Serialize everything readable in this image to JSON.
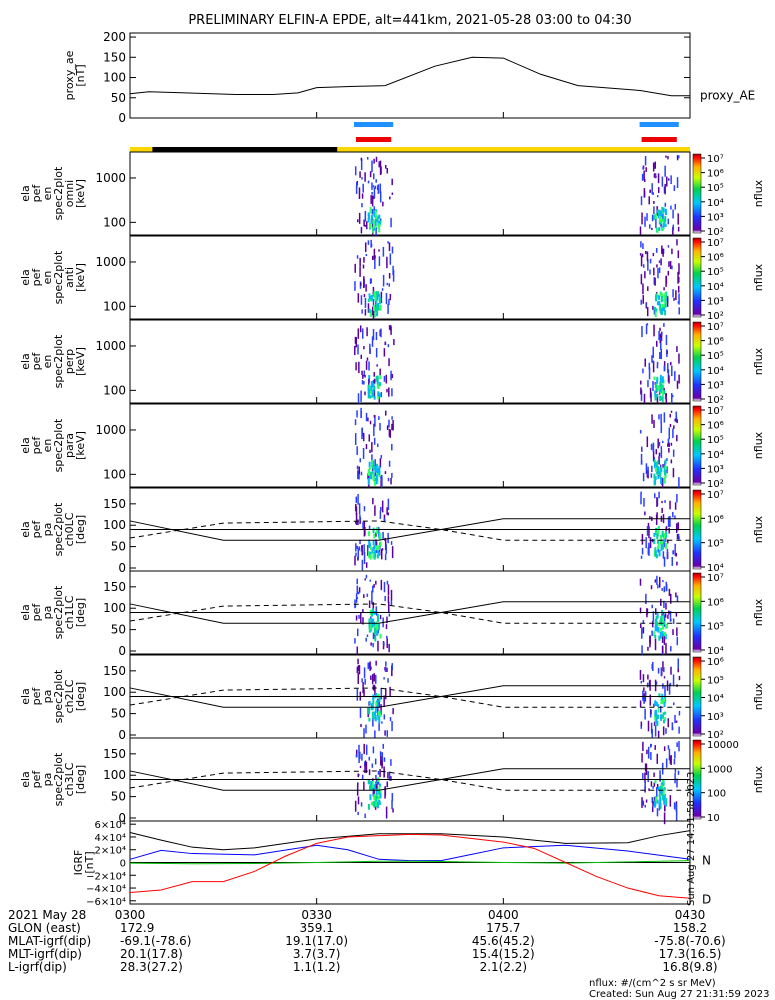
{
  "title": "PRELIMINARY ELFIN-A EPDE, alt=441km, 2021-05-28 03:00 to 04:30",
  "chart_data": {
    "type": "line",
    "time_range": [
      "03:00",
      "04:30"
    ],
    "x_ticks": [
      "0300",
      "0330",
      "0400",
      "0430"
    ],
    "panels": [
      {
        "id": "proxy_ae",
        "ylabel": [
          "proxy_ae",
          "[nT]"
        ],
        "yticks": [
          "0",
          "50",
          "100",
          "150",
          "200"
        ],
        "ylim": [
          0,
          210
        ],
        "legend": "proxy_AE",
        "series": [
          {
            "name": "proxy_AE",
            "x": [
              0,
              3,
              7,
              17,
              23,
              27,
              30,
              36,
              41,
              49,
              55,
              60,
              66,
              72,
              82,
              87,
              90
            ],
            "y": [
              60,
              65,
              63,
              58,
              58,
              62,
              75,
              78,
              80,
              128,
              150,
              148,
              108,
              80,
              68,
              55,
              55
            ]
          }
        ]
      },
      {
        "id": "omni",
        "ylabel": [
          "ela",
          "pef",
          "en",
          "spec2plot",
          "omni",
          "[keV]"
        ],
        "yticks": [
          "100",
          "1000"
        ],
        "cbar_ticks": [
          "10²",
          "10³",
          "10⁴",
          "10⁵",
          "10⁶",
          "10⁷"
        ],
        "cbar_label": "nflux"
      },
      {
        "id": "anti",
        "ylabel": [
          "ela",
          "pef",
          "en",
          "spec2plot",
          "anti",
          "[keV]"
        ],
        "yticks": [
          "100",
          "1000"
        ],
        "cbar_ticks": [
          "10²",
          "10³",
          "10⁴",
          "10⁵",
          "10⁶",
          "10⁷"
        ],
        "cbar_label": "nflux"
      },
      {
        "id": "perp",
        "ylabel": [
          "ela",
          "pef",
          "en",
          "spec2plot",
          "perp",
          "[keV]"
        ],
        "yticks": [
          "100",
          "1000"
        ],
        "cbar_ticks": [
          "10²",
          "10³",
          "10⁴",
          "10⁵",
          "10⁶",
          "10⁷"
        ],
        "cbar_label": "nflux"
      },
      {
        "id": "para",
        "ylabel": [
          "ela",
          "pef",
          "en",
          "spec2plot",
          "para",
          "[keV]"
        ],
        "yticks": [
          "100",
          "1000"
        ],
        "cbar_ticks": [
          "10²",
          "10³",
          "10⁴",
          "10⁵",
          "10⁶",
          "10⁷"
        ],
        "cbar_label": "nflux"
      },
      {
        "id": "ch0LC",
        "ylabel": [
          "ela",
          "pef",
          "pa",
          "spec2plot",
          "ch0LC",
          "[deg]"
        ],
        "yticks": [
          "0",
          "50",
          "100",
          "150"
        ],
        "cbar_ticks": [
          "10⁴",
          "10⁵",
          "10⁶",
          "10⁷"
        ],
        "cbar_label": "nflux"
      },
      {
        "id": "ch1LC",
        "ylabel": [
          "ela",
          "pef",
          "pa",
          "spec2plot",
          "ch1LC",
          "[deg]"
        ],
        "yticks": [
          "0",
          "50",
          "100",
          "150"
        ],
        "cbar_ticks": [
          "10⁴",
          "10⁵",
          "10⁶",
          "10⁷"
        ],
        "cbar_label": "nflux"
      },
      {
        "id": "ch2LC",
        "ylabel": [
          "ela",
          "pef",
          "pa",
          "spec2plot",
          "ch2LC",
          "[deg]"
        ],
        "yticks": [
          "0",
          "50",
          "100",
          "150"
        ],
        "cbar_ticks": [
          "10²",
          "10³",
          "10⁴",
          "10⁵",
          "10⁶"
        ],
        "cbar_label": "nflux"
      },
      {
        "id": "ch3LC",
        "ylabel": [
          "ela",
          "pef",
          "pa",
          "spec2plot",
          "ch3LC",
          "[deg]"
        ],
        "yticks": [
          "0",
          "50",
          "100",
          "150"
        ],
        "cbar_ticks": [
          "10",
          "100",
          "1000",
          "10000"
        ],
        "cbar_label": "nflux"
      },
      {
        "id": "igrf",
        "ylabel": [
          "IGRF",
          "[nT]"
        ],
        "yticks": [
          "−6×10⁴",
          "−4×10⁴",
          "−2×10⁴",
          "0",
          "2×10⁴",
          "4×10⁴",
          "6×10⁴"
        ],
        "ylim": [
          -65000,
          65000
        ],
        "series": [
          {
            "color": "#000000",
            "x": [
              0,
              5,
              10,
              15,
              20,
              30,
              40,
              50,
              60,
              70,
              80,
              85,
              90
            ],
            "y": [
              47000,
              35000,
              24000,
              20000,
              23000,
              37000,
              45000,
              45000,
              40000,
              30000,
              31000,
              42000,
              50000
            ]
          },
          {
            "name": "N",
            "color": "#0000ff",
            "x": [
              0,
              5,
              10,
              20,
              30,
              35,
              40,
              45,
              50,
              55,
              60,
              70,
              80,
              90
            ],
            "y": [
              5000,
              19000,
              14000,
              12000,
              27000,
              20000,
              5000,
              3000,
              3000,
              13000,
              23000,
              27000,
              18000,
              5000
            ]
          },
          {
            "color": "#00c000",
            "x": [
              0,
              10,
              20,
              30,
              40,
              45,
              50,
              60,
              70,
              80,
              90
            ],
            "y": [
              -1000,
              -2000,
              -1500,
              0,
              2000,
              2000,
              1500,
              0,
              -1000,
              1000,
              3000
            ]
          },
          {
            "name": "D",
            "color": "#ff0000",
            "x": [
              0,
              5,
              10,
              15,
              20,
              25,
              30,
              35,
              40,
              45,
              50,
              60,
              65,
              70,
              75,
              80,
              85,
              90
            ],
            "y": [
              -47000,
              -43000,
              -30000,
              -30000,
              -14000,
              10000,
              30000,
              40000,
              42000,
              44000,
              43000,
              32000,
              22000,
              0,
              -22000,
              -40000,
              -52000,
              -56000
            ]
          }
        ]
      }
    ],
    "bursts": [
      [
        0.4,
        0.47
      ],
      [
        0.91,
        0.98
      ]
    ],
    "orbit_bar_black": [
      0.04,
      0.37
    ]
  },
  "footer": {
    "date_label": "2021 May 28",
    "rows": [
      {
        "label": "GLON (east)",
        "values": [
          "172.9",
          "359.1",
          "175.7",
          "158.2"
        ]
      },
      {
        "label": "MLAT-igrf(dip)",
        "values": [
          "-69.1(-78.6)",
          "19.1(17.0)",
          "45.6(45.2)",
          "-75.8(-70.6)"
        ]
      },
      {
        "label": "MLT-igrf(dip)",
        "values": [
          "20.1(17.8)",
          "3.7(3.7)",
          "15.4(15.2)",
          "17.3(16.5)"
        ]
      },
      {
        "label": "L-igrf(dip)",
        "values": [
          "28.3(27.2)",
          "1.1(1.2)",
          "2.1(2.2)",
          "16.8(9.8)"
        ]
      }
    ],
    "units_note": "nflux: #/(cm^2 s sr MeV)",
    "created": "Created: Sun Aug 27 21:31:59 2023",
    "side_stamp": "Sun Aug 27 14:31:58 2023"
  }
}
